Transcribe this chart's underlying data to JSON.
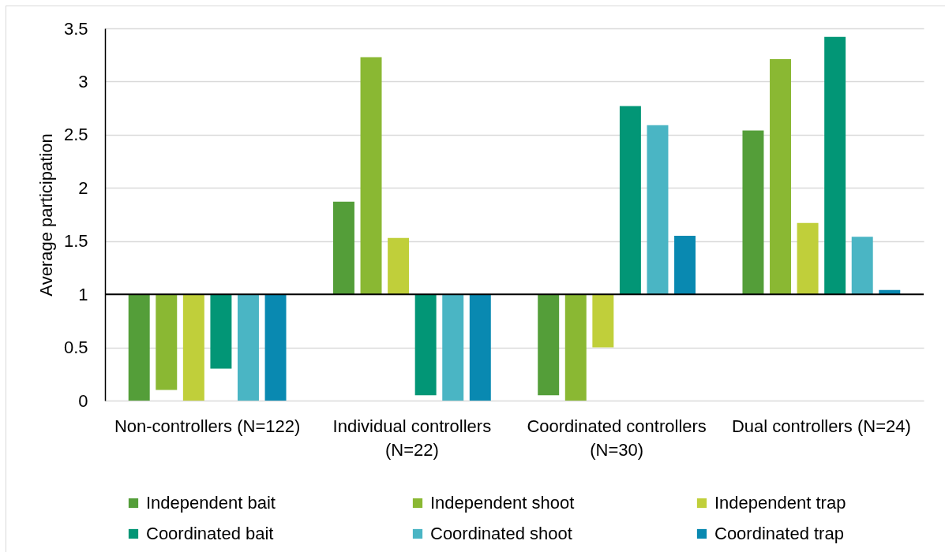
{
  "chart_data": {
    "type": "bar",
    "ylabel": "Average participation",
    "categories": [
      "Non-controllers (N=122)",
      "Individual controllers (N=22)",
      "Coordinated controllers (N=30)",
      "Dual controllers (N=24)"
    ],
    "series": [
      {
        "name": "Independent bait",
        "color": "#549e39",
        "base": [
          1,
          1,
          1,
          1
        ],
        "values": [
          -1,
          0.87,
          -0.95,
          1.54
        ]
      },
      {
        "name": "Independent shoot",
        "color": "#8ab833",
        "base": [
          1,
          1,
          1,
          1
        ],
        "values": [
          -0.9,
          2.23,
          -1,
          2.21
        ]
      },
      {
        "name": "Independent trap",
        "color": "#c0cf3a",
        "base": [
          1,
          1,
          1,
          1
        ],
        "values": [
          -1,
          0.53,
          -0.5,
          0.67
        ]
      },
      {
        "name": "Coordinated bait",
        "color": "#029676",
        "base": [
          1,
          1,
          1,
          1
        ],
        "values": [
          -0.7,
          -0.95,
          1.77,
          2.42
        ]
      },
      {
        "name": "Coordinated shoot",
        "color": "#4ab5c4",
        "base": [
          1,
          1,
          1,
          1
        ],
        "values": [
          -1,
          -1,
          1.59,
          0.54
        ]
      },
      {
        "name": "Coordinated trap",
        "color": "#0989b1",
        "base": [
          1,
          1,
          1,
          1
        ],
        "values": [
          -1,
          -1,
          0.55,
          0.04
        ]
      }
    ],
    "ylim": [
      0,
      3.5
    ],
    "yticks": [
      0,
      0.5,
      1,
      1.5,
      2,
      2.5,
      3,
      3.5
    ],
    "grid": "y",
    "legend": "bottom",
    "ref_lines": [
      {
        "axis": "y",
        "value": 1,
        "color": "#000000"
      }
    ]
  }
}
